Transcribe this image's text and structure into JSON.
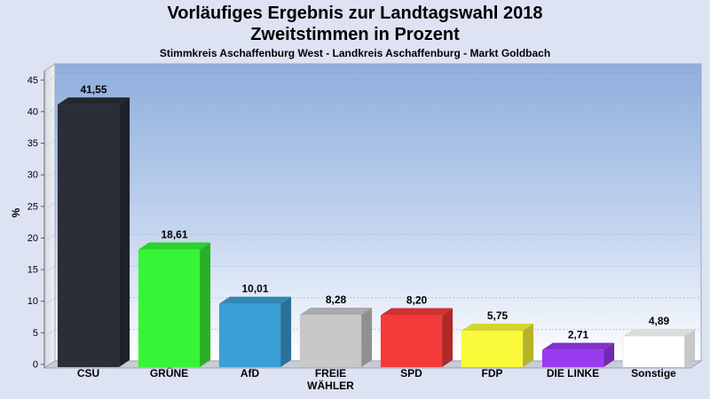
{
  "chart_data": {
    "type": "bar",
    "title_line1": "Vorläufiges Ergebnis zur Landtagswahl 2018",
    "title_line2": "Zweitstimmen in Prozent",
    "subtitle": "Stimmkreis Aschaffenburg West - Landkreis Aschaffenburg - Markt Goldbach",
    "ylabel": "%",
    "xlabel": "",
    "ylim": [
      0,
      47
    ],
    "yticks": [
      0,
      5,
      10,
      15,
      20,
      25,
      30,
      35,
      40,
      45
    ],
    "grid": true,
    "legend": "none",
    "categories": [
      [
        "CSU"
      ],
      [
        "GRÜNE"
      ],
      [
        "AfD"
      ],
      [
        "FREIE",
        "WÄHLER"
      ],
      [
        "SPD"
      ],
      [
        "FDP"
      ],
      [
        "DIE LINKE"
      ],
      [
        "Sonstige"
      ]
    ],
    "values": [
      41.55,
      18.61,
      10.01,
      8.28,
      8.2,
      5.75,
      2.71,
      4.89
    ],
    "value_labels": [
      "41,55",
      "18,61",
      "10,01",
      "8,28",
      "8,20",
      "5,75",
      "2,71",
      "4,89"
    ],
    "colors": [
      "#2b2e38",
      "#36f536",
      "#3a9fd4",
      "#c8c8c8",
      "#f53a3a",
      "#fafa3a",
      "#9a3af0",
      "#ffffff"
    ]
  }
}
